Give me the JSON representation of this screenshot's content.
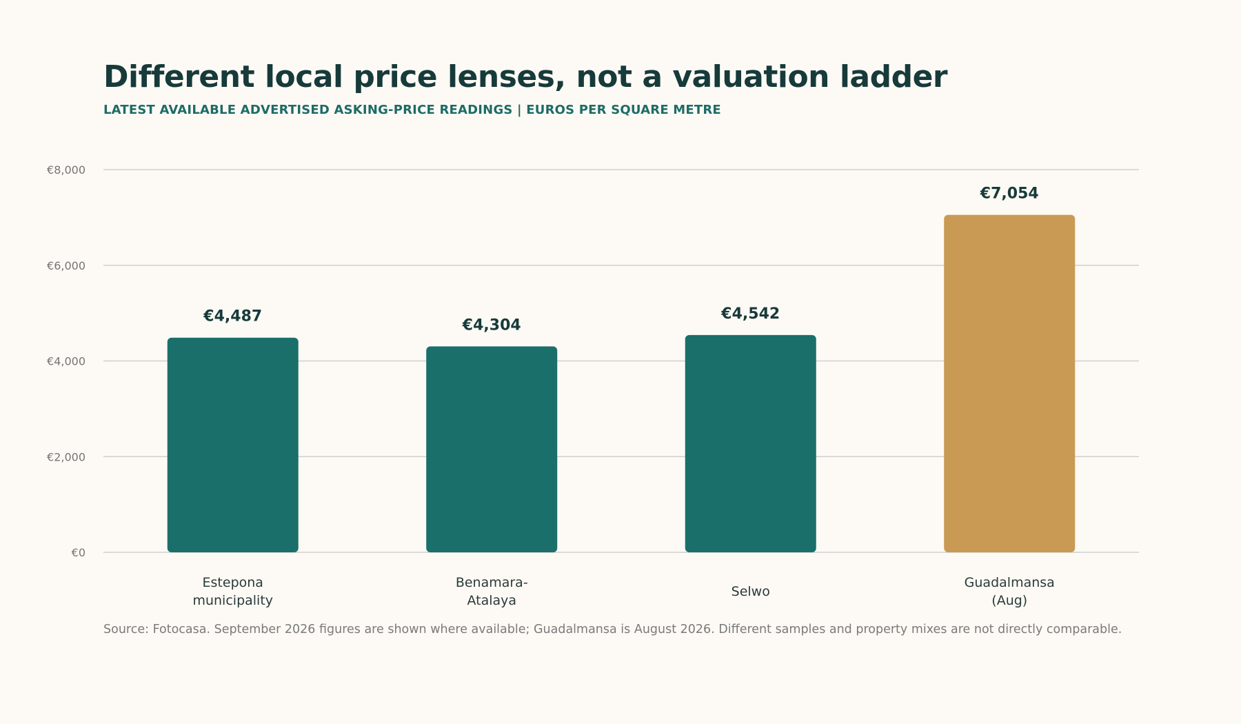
{
  "title": "Different local price lenses, not a valuation ladder",
  "subtitle": "LATEST AVAILABLE ADVERTISED ASKING-PRICE READINGS  |  EUROS PER SQUARE METRE",
  "source": "Source: Fotocasa. September 2026 figures are shown where available; Guadalmansa is August 2026. Different samples and property mixes are not directly comparable.",
  "colors": {
    "primary_bar": "#1a6f6a",
    "highlight_bar": "#c99a54",
    "gridline": "#cfcfcf"
  },
  "chart_data": {
    "type": "bar",
    "categories": [
      [
        "Estepona",
        "municipality"
      ],
      [
        "Benamara-",
        "Atalaya"
      ],
      [
        "Selwo"
      ],
      [
        "Guadalmansa",
        "(Aug)"
      ]
    ],
    "values": [
      4487,
      4304,
      4542,
      7054
    ],
    "value_labels": [
      "€4,487",
      "€4,304",
      "€4,542",
      "€7,054"
    ],
    "highlight": [
      false,
      false,
      false,
      true
    ],
    "ylim": [
      0,
      8000
    ],
    "yticks": [
      0,
      2000,
      4000,
      6000,
      8000
    ],
    "ytick_labels": [
      "€0",
      "€2,000",
      "€4,000",
      "€6,000",
      "€8,000"
    ],
    "grid": true,
    "xlabel": "",
    "ylabel": ""
  }
}
